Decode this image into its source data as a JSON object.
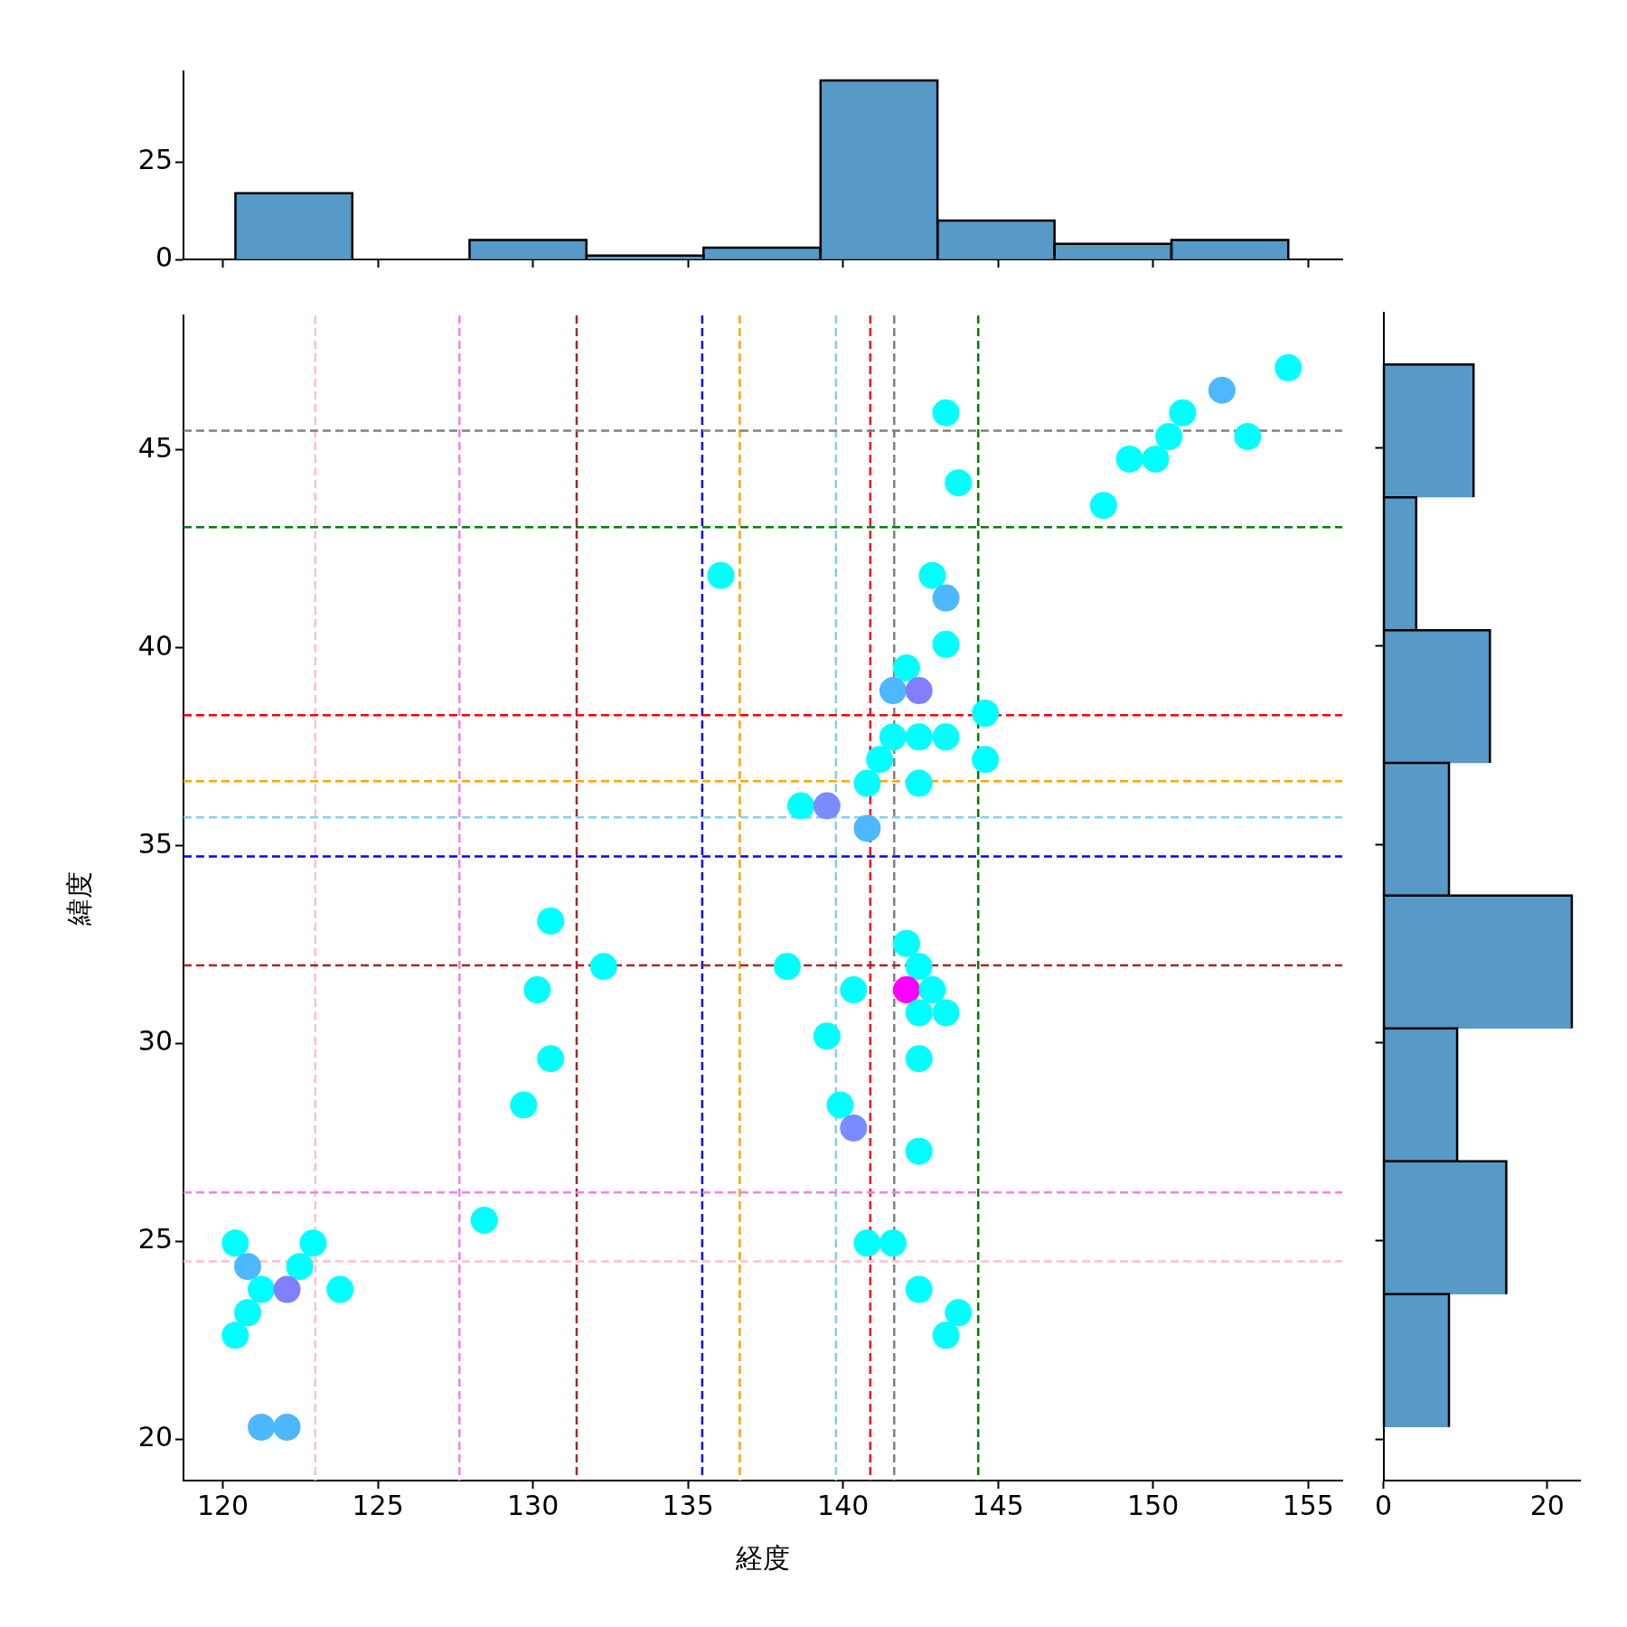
{
  "chart_data": [
    {
      "type": "histogram",
      "bins": [
        120.4,
        124.18,
        127.95,
        131.73,
        135.5,
        139.27,
        143.05,
        146.82,
        150.59,
        154.36
      ],
      "values": [
        17,
        0,
        5,
        1,
        3,
        46,
        10,
        4,
        5
      ],
      "color": "#5799c7",
      "xlim": [
        118.73,
        156.1
      ],
      "xticks": [
        {
          "value": 120,
          "label": null
        },
        {
          "value": 125,
          "label": null
        },
        {
          "value": 130,
          "label": null
        },
        {
          "value": 135,
          "label": null
        },
        {
          "value": 140,
          "label": null
        },
        {
          "value": 145,
          "label": null
        },
        {
          "value": 150,
          "label": null
        },
        {
          "value": 155,
          "label": null
        }
      ],
      "ylim": [
        0,
        48.3
      ],
      "yticks": [
        0,
        25
      ],
      "tick_labels": "y"
    },
    {
      "type": "scatter",
      "xlabel": "経度",
      "ylabel": "緯度",
      "marker": "circle",
      "x": [
        154.36,
        152.22,
        143.32,
        150.95,
        150.51,
        153.05,
        149.24,
        150.08,
        143.72,
        148.4,
        136.06,
        142.88,
        143.32,
        143.32,
        142.05,
        141.61,
        142.45,
        144.59,
        141.61,
        142.45,
        143.32,
        141.18,
        144.59,
        140.78,
        142.45,
        138.64,
        139.48,
        140.78,
        130.57,
        142.05,
        132.28,
        138.2,
        142.45,
        130.14,
        140.34,
        142.05,
        142.88,
        142.45,
        143.32,
        139.48,
        130.57,
        142.45,
        129.7,
        139.91,
        140.34,
        142.45,
        128.43,
        120.4,
        122.91,
        140.78,
        141.61,
        120.8,
        122.48,
        121.24,
        122.07,
        123.78,
        142.45,
        120.8,
        143.72,
        120.4,
        143.32,
        121.24,
        122.07
      ],
      "values": [
        47.08,
        46.51,
        45.94,
        45.94,
        45.34,
        45.34,
        44.77,
        44.77,
        44.17,
        43.6,
        41.83,
        41.83,
        41.26,
        40.09,
        39.49,
        38.92,
        38.92,
        38.35,
        37.75,
        37.75,
        37.75,
        37.18,
        37.18,
        36.58,
        36.58,
        36.01,
        36.01,
        35.44,
        33.1,
        32.53,
        31.95,
        31.95,
        31.95,
        31.36,
        31.36,
        31.36,
        31.36,
        30.78,
        30.78,
        30.19,
        29.62,
        29.62,
        28.45,
        28.45,
        27.87,
        27.28,
        25.54,
        24.96,
        24.96,
        24.96,
        24.96,
        24.37,
        24.37,
        23.79,
        23.79,
        23.79,
        23.79,
        23.2,
        23.2,
        22.63,
        22.63,
        20.31,
        20.31
      ],
      "colors": [
        "#00ffff",
        "#4db8ff",
        "#00ffff",
        "#00ffff",
        "#00ffff",
        "#00ffff",
        "#00ffff",
        "#00ffff",
        "#00ffff",
        "#00ffff",
        "#00ffff",
        "#00ffff",
        "#4db8ff",
        "#00ffff",
        "#00ffff",
        "#4db8ff",
        "#8080ff",
        "#00ffff",
        "#00ffff",
        "#00ffff",
        "#00ffff",
        "#00ffff",
        "#00ffff",
        "#00ffff",
        "#00ffff",
        "#00ffff",
        "#7a8cff",
        "#4db8ff",
        "#00ffff",
        "#00ffff",
        "#00ffff",
        "#00ffff",
        "#00ffff",
        "#00ffff",
        "#00ffff",
        "#ff00ff",
        "#00ffff",
        "#00ffff",
        "#00ffff",
        "#00ffff",
        "#00ffff",
        "#00ffff",
        "#00ffff",
        "#00ffff",
        "#7a8cff",
        "#00ffff",
        "#00ffff",
        "#00ffff",
        "#00ffff",
        "#00ffff",
        "#00ffff",
        "#4db8ff",
        "#00ffff",
        "#00ffff",
        "#8080ff",
        "#00ffff",
        "#00ffff",
        "#00ffff",
        "#00ffff",
        "#00ffff",
        "#00ffff",
        "#4db8ff",
        "#4db8ff"
      ],
      "xlim": [
        118.73,
        156.1
      ],
      "xticks": [
        120,
        125,
        130,
        135,
        140,
        145,
        150,
        155
      ],
      "ylim": [
        18.96,
        48.4
      ],
      "yticks": [
        20,
        25,
        30,
        35,
        40,
        45
      ],
      "ref_lines": [
        {
          "axis": "x",
          "value": 122.98,
          "color": "#ffc0cb",
          "line_style": "dashed"
        },
        {
          "axis": "x",
          "value": 127.63,
          "color": "#ee82ee",
          "line_style": "dashed"
        },
        {
          "axis": "x",
          "value": 131.41,
          "color": "#b22222",
          "line_style": "dashed"
        },
        {
          "axis": "x",
          "value": 135.46,
          "color": "#0000ff",
          "line_style": "dashed"
        },
        {
          "axis": "x",
          "value": 136.67,
          "color": "#ffa500",
          "line_style": "dashed"
        },
        {
          "axis": "x",
          "value": 139.77,
          "color": "#87ceeb",
          "line_style": "dashed"
        },
        {
          "axis": "x",
          "value": 140.88,
          "color": "#ff0000",
          "line_style": "dashed"
        },
        {
          "axis": "x",
          "value": 141.65,
          "color": "#808080",
          "line_style": "dashed"
        },
        {
          "axis": "x",
          "value": 144.36,
          "color": "#008000",
          "line_style": "dashed"
        },
        {
          "axis": "y",
          "value": 45.49,
          "color": "#808080",
          "line_style": "dashed"
        },
        {
          "axis": "y",
          "value": 43.05,
          "color": "#008000",
          "line_style": "dashed"
        },
        {
          "axis": "y",
          "value": 38.3,
          "color": "#ff0000",
          "line_style": "dashed"
        },
        {
          "axis": "y",
          "value": 36.63,
          "color": "#ffa500",
          "line_style": "dashed"
        },
        {
          "axis": "y",
          "value": 35.72,
          "color": "#87ceeb",
          "line_style": "dashed"
        },
        {
          "axis": "y",
          "value": 34.73,
          "color": "#0000ff",
          "line_style": "dashed"
        },
        {
          "axis": "y",
          "value": 31.98,
          "color": "#b22222",
          "line_style": "dashed"
        },
        {
          "axis": "y",
          "value": 26.24,
          "color": "#ee82ee",
          "line_style": "dashed"
        },
        {
          "axis": "y",
          "value": 24.5,
          "color": "#ffc0cb",
          "line_style": "dashed"
        }
      ]
    },
    {
      "type": "histogram",
      "orientation": "horizontal",
      "bins": [
        20.31,
        23.66,
        27.01,
        30.36,
        33.71,
        37.05,
        40.4,
        43.75,
        47.1
      ],
      "values": [
        8,
        15,
        9,
        23,
        8,
        13,
        4,
        11
      ],
      "color": "#5799c7",
      "xlim": [
        0,
        24
      ],
      "xticks": [
        0,
        20
      ],
      "ylim": [
        18.96,
        48.4
      ],
      "yticks": [
        {
          "value": 20,
          "label": null
        },
        {
          "value": 25,
          "label": null
        },
        {
          "value": 30,
          "label": null
        },
        {
          "value": 35,
          "label": null
        },
        {
          "value": 40,
          "label": null
        },
        {
          "value": 45,
          "label": null
        }
      ],
      "tick_labels": "x"
    }
  ]
}
